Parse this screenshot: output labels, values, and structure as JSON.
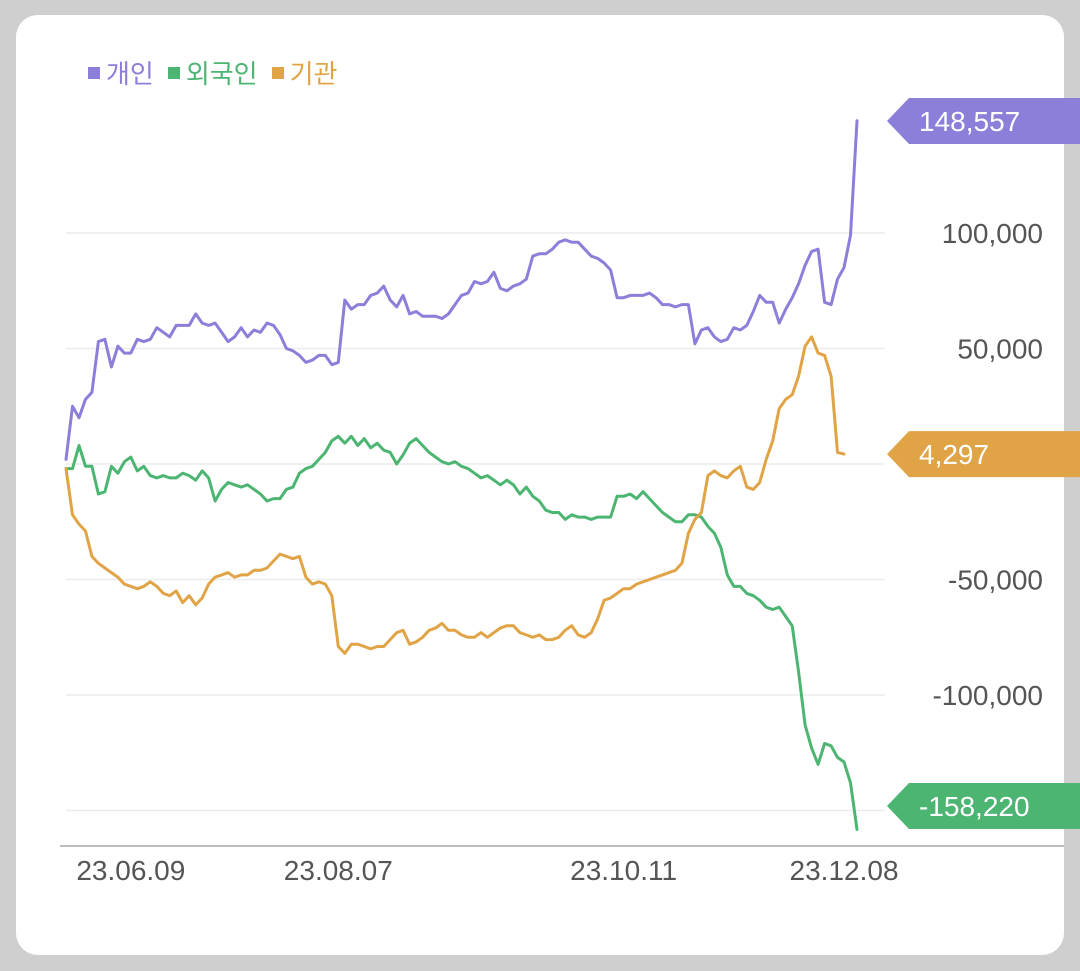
{
  "chart_data": {
    "type": "line",
    "legend_position": "top-left",
    "grid": true,
    "ylim": [
      -160000,
      150000
    ],
    "y_ticks": [
      "100,000",
      "50,000",
      "-50,000",
      "-100,000"
    ],
    "y_tick_values": [
      100000,
      50000,
      -50000,
      -100000
    ],
    "x_ticks": [
      "23.06.09",
      "23.08.07",
      "23.10.11",
      "23.12.08"
    ],
    "x_tick_index": [
      10,
      42,
      86,
      120
    ],
    "series": [
      {
        "name": "개인",
        "color": "#8b7fd9",
        "end_label": "148,557",
        "values": [
          2000,
          25000,
          20000,
          28000,
          31000,
          53000,
          54000,
          42000,
          51000,
          48000,
          48000,
          54000,
          53000,
          54000,
          59000,
          57000,
          55000,
          60000,
          60000,
          60000,
          65000,
          61000,
          60000,
          61000,
          57000,
          53000,
          55000,
          59000,
          55000,
          58000,
          57000,
          61000,
          60000,
          56000,
          50000,
          49000,
          47000,
          44000,
          45000,
          47000,
          47000,
          43000,
          44000,
          71000,
          67000,
          69000,
          69000,
          73000,
          74000,
          77000,
          71000,
          68000,
          73000,
          65000,
          66000,
          64000,
          64000,
          64000,
          63000,
          65000,
          69000,
          73000,
          74000,
          79000,
          78000,
          79000,
          83000,
          76000,
          75000,
          77000,
          78000,
          80000,
          90000,
          91000,
          91000,
          93000,
          96000,
          97000,
          96000,
          96000,
          93000,
          90000,
          89000,
          87000,
          84000,
          72000,
          72000,
          73000,
          73000,
          73000,
          74000,
          72000,
          69000,
          69000,
          68000,
          69000,
          69000,
          52000,
          58000,
          59000,
          55000,
          53000,
          54000,
          59000,
          58000,
          60000,
          66000,
          73000,
          70000,
          70000,
          61000,
          67000,
          72000,
          78000,
          86000,
          92000,
          93000,
          70000,
          69000,
          80000,
          85000,
          99000,
          148557
        ]
      },
      {
        "name": "외국인",
        "color": "#4cb572",
        "end_label": "-158,220",
        "values": [
          -2000,
          -2000,
          8000,
          -1000,
          -1000,
          -13000,
          -12000,
          -1000,
          -4000,
          1000,
          3000,
          -3000,
          -1000,
          -5000,
          -6000,
          -5000,
          -6000,
          -6000,
          -4000,
          -5000,
          -7000,
          -3000,
          -6000,
          -16000,
          -11000,
          -8000,
          -9000,
          -10000,
          -9000,
          -11000,
          -13000,
          -16000,
          -15000,
          -15000,
          -11000,
          -10000,
          -4000,
          -2000,
          -1000,
          2000,
          5000,
          10000,
          12000,
          9000,
          12000,
          8000,
          11000,
          7000,
          9000,
          6000,
          5000,
          0,
          4000,
          9000,
          11000,
          8000,
          5000,
          3000,
          1000,
          0,
          1000,
          -1000,
          -2000,
          -4000,
          -6000,
          -5000,
          -7000,
          -9000,
          -7000,
          -9000,
          -13000,
          -10000,
          -14000,
          -16000,
          -20000,
          -21000,
          -21000,
          -24000,
          -22000,
          -23000,
          -23000,
          -24000,
          -23000,
          -23000,
          -23000,
          -14000,
          -14000,
          -13000,
          -15000,
          -12000,
          -15000,
          -18000,
          -21000,
          -23000,
          -25000,
          -25000,
          -22000,
          -22000,
          -23000,
          -27000,
          -30000,
          -36000,
          -48000,
          -53000,
          -53000,
          -56000,
          -57000,
          -59000,
          -62000,
          -63000,
          -62000,
          -66000,
          -70000,
          -90000,
          -113000,
          -123000,
          -130000,
          -121000,
          -122000,
          -127000,
          -129000,
          -138000,
          -158220
        ]
      },
      {
        "name": "기관",
        "color": "#e0a447",
        "end_label": "4,297",
        "values": [
          -2000,
          -22000,
          -26000,
          -29000,
          -40000,
          -43000,
          -45000,
          -47000,
          -49000,
          -52000,
          -53000,
          -54000,
          -53000,
          -51000,
          -53000,
          -56000,
          -57000,
          -55000,
          -60000,
          -57000,
          -61000,
          -58000,
          -52000,
          -49000,
          -48000,
          -47000,
          -49000,
          -48000,
          -48000,
          -46000,
          -46000,
          -45000,
          -42000,
          -39000,
          -40000,
          -41000,
          -40000,
          -49000,
          -52000,
          -51000,
          -52000,
          -57000,
          -79000,
          -82000,
          -78000,
          -78000,
          -79000,
          -80000,
          -79000,
          -79000,
          -76000,
          -73000,
          -72000,
          -78000,
          -77000,
          -75000,
          -72000,
          -71000,
          -69000,
          -72000,
          -72000,
          -74000,
          -75000,
          -75000,
          -73000,
          -75000,
          -73000,
          -71000,
          -70000,
          -70000,
          -73000,
          -74000,
          -75000,
          -74000,
          -76000,
          -76000,
          -75000,
          -72000,
          -70000,
          -74000,
          -75000,
          -73000,
          -67000,
          -59000,
          -58000,
          -56000,
          -54000,
          -54000,
          -52000,
          -51000,
          -50000,
          -49000,
          -48000,
          -47000,
          -46000,
          -43000,
          -30000,
          -24000,
          -21000,
          -5000,
          -3000,
          -5000,
          -6000,
          -3000,
          -1000,
          -10000,
          -11000,
          -8000,
          2000,
          10000,
          24000,
          28000,
          30000,
          38000,
          51000,
          55000,
          48000,
          47000,
          38000,
          5000,
          4297
        ]
      }
    ]
  }
}
